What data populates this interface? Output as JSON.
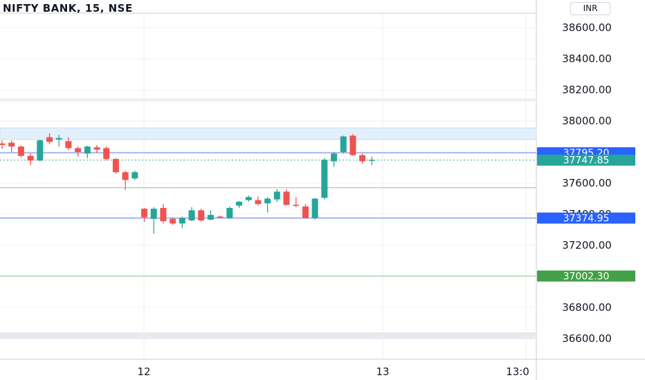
{
  "title": "NIFTY BANK, 15, NSE",
  "currency": "INR",
  "colors": {
    "up": "#26a69a",
    "down": "#ef5350",
    "blue_line": "#5b7be0",
    "green_line": "#8cc88c",
    "last_price": "#26a69a",
    "blue_label": "#2962ff",
    "green_label": "#43a047",
    "zone_fill": "#e3f0fb"
  },
  "chart_data": {
    "type": "candlestick",
    "title": "NIFTY BANK, 15, NSE",
    "ylim": [
      36540,
      38720
    ],
    "y_ticks": [
      "38600.00",
      "38400.00",
      "38200.00",
      "38000.00",
      "37600.00",
      "37400.00",
      "37200.00",
      "36800.00",
      "36600.00"
    ],
    "x_ticks": [
      "12",
      "13",
      "13:0"
    ],
    "price_labels": [
      {
        "value": 37795.2,
        "text": "37795.20",
        "kind": "blue"
      },
      {
        "value": 37747.85,
        "text": "37747.85",
        "kind": "last"
      },
      {
        "value": 37374.95,
        "text": "37374.95",
        "kind": "blue"
      },
      {
        "value": 37002.3,
        "text": "37002.30",
        "kind": "green"
      }
    ],
    "horizontal_lines": [
      {
        "value": 37795.2,
        "kind": "blue"
      },
      {
        "value": 37570,
        "kind": "green"
      },
      {
        "value": 37374.95,
        "kind": "blue"
      },
      {
        "value": 37002.3,
        "kind": "green"
      },
      {
        "value": 37747.85,
        "kind": "last-dotted"
      }
    ],
    "zone": {
      "from": 37880,
      "to": 37955
    },
    "candles": [
      {
        "o": 37855,
        "h": 37875,
        "l": 37820,
        "c": 37845
      },
      {
        "o": 37860,
        "h": 37875,
        "l": 37800,
        "c": 37835
      },
      {
        "o": 37835,
        "h": 37840,
        "l": 37765,
        "c": 37775
      },
      {
        "o": 37775,
        "h": 37790,
        "l": 37715,
        "c": 37745
      },
      {
        "o": 37745,
        "h": 37880,
        "l": 37740,
        "c": 37875
      },
      {
        "o": 37895,
        "h": 37920,
        "l": 37850,
        "c": 37865
      },
      {
        "o": 37880,
        "h": 37910,
        "l": 37835,
        "c": 37890
      },
      {
        "o": 37870,
        "h": 37895,
        "l": 37810,
        "c": 37825
      },
      {
        "o": 37825,
        "h": 37835,
        "l": 37770,
        "c": 37800
      },
      {
        "o": 37790,
        "h": 37840,
        "l": 37760,
        "c": 37835
      },
      {
        "o": 37830,
        "h": 37845,
        "l": 37795,
        "c": 37815
      },
      {
        "o": 37825,
        "h": 37835,
        "l": 37745,
        "c": 37755
      },
      {
        "o": 37755,
        "h": 37760,
        "l": 37660,
        "c": 37670
      },
      {
        "o": 37670,
        "h": 37680,
        "l": 37555,
        "c": 37620
      },
      {
        "o": 37630,
        "h": 37680,
        "l": 37620,
        "c": 37670
      },
      {
        "o": 37435,
        "h": 37440,
        "l": 37350,
        "c": 37380
      },
      {
        "o": 37370,
        "h": 37445,
        "l": 37275,
        "c": 37435
      },
      {
        "o": 37440,
        "h": 37465,
        "l": 37340,
        "c": 37355
      },
      {
        "o": 37370,
        "h": 37380,
        "l": 37330,
        "c": 37340
      },
      {
        "o": 37340,
        "h": 37385,
        "l": 37310,
        "c": 37375
      },
      {
        "o": 37360,
        "h": 37445,
        "l": 37355,
        "c": 37425
      },
      {
        "o": 37425,
        "h": 37435,
        "l": 37350,
        "c": 37360
      },
      {
        "o": 37365,
        "h": 37425,
        "l": 37360,
        "c": 37395
      },
      {
        "o": 37385,
        "h": 37390,
        "l": 37375,
        "c": 37380
      },
      {
        "o": 37375,
        "h": 37450,
        "l": 37370,
        "c": 37440
      },
      {
        "o": 37455,
        "h": 37485,
        "l": 37440,
        "c": 37480
      },
      {
        "o": 37490,
        "h": 37520,
        "l": 37480,
        "c": 37510
      },
      {
        "o": 37490,
        "h": 37515,
        "l": 37455,
        "c": 37465
      },
      {
        "o": 37470,
        "h": 37510,
        "l": 37410,
        "c": 37500
      },
      {
        "o": 37495,
        "h": 37560,
        "l": 37480,
        "c": 37545
      },
      {
        "o": 37545,
        "h": 37560,
        "l": 37455,
        "c": 37460
      },
      {
        "o": 37460,
        "h": 37510,
        "l": 37445,
        "c": 37455
      },
      {
        "o": 37450,
        "h": 37465,
        "l": 37370,
        "c": 37375
      },
      {
        "o": 37375,
        "h": 37505,
        "l": 37365,
        "c": 37500
      },
      {
        "o": 37505,
        "h": 37760,
        "l": 37495,
        "c": 37750
      },
      {
        "o": 37740,
        "h": 37800,
        "l": 37705,
        "c": 37790
      },
      {
        "o": 37800,
        "h": 37905,
        "l": 37790,
        "c": 37900
      },
      {
        "o": 37905,
        "h": 37915,
        "l": 37775,
        "c": 37780
      },
      {
        "o": 37780,
        "h": 37790,
        "l": 37725,
        "c": 37740
      },
      {
        "o": 37745,
        "h": 37770,
        "l": 37715,
        "c": 37750
      }
    ]
  }
}
